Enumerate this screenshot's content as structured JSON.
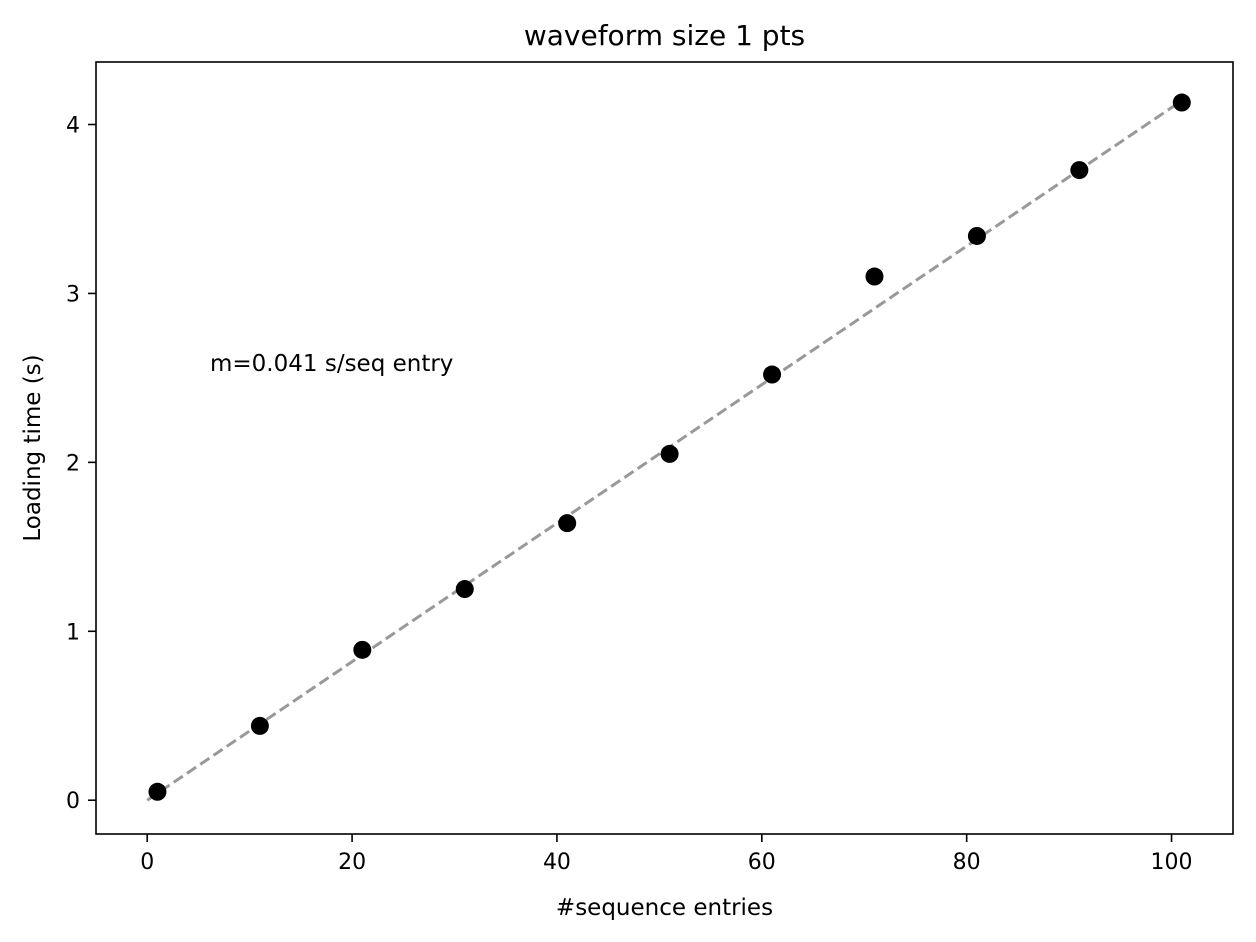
{
  "chart_data": {
    "type": "scatter",
    "title": "waveform size 1 pts",
    "xlabel": "#sequence entries",
    "ylabel": "Loading time (s)",
    "xlim": [
      -5,
      106
    ],
    "ylim": [
      -0.2,
      4.37
    ],
    "xticks": [
      0,
      20,
      40,
      60,
      80,
      100
    ],
    "yticks": [
      0,
      1,
      2,
      3,
      4
    ],
    "grid": false,
    "x": [
      1,
      11,
      21,
      31,
      41,
      51,
      61,
      71,
      81,
      91,
      101
    ],
    "y": [
      0.05,
      0.44,
      0.89,
      1.25,
      1.64,
      2.05,
      2.52,
      3.1,
      3.34,
      3.73,
      4.13
    ],
    "marker_color": "#000000",
    "fit_line": {
      "x": [
        0,
        101
      ],
      "y": [
        0.0,
        4.141
      ],
      "color": "#999999",
      "style": "dashed"
    },
    "annotation": "m=0.041 s/seq entry"
  }
}
